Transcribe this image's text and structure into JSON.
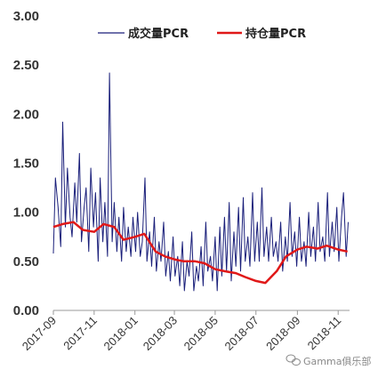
{
  "chart_data": {
    "type": "line",
    "ylim": [
      0,
      3
    ],
    "y_ticks": [
      "0.00",
      "0.50",
      "1.00",
      "1.50",
      "2.00",
      "2.50",
      "3.00"
    ],
    "x_range": [
      "2017-09-01",
      "2018-11-18"
    ],
    "x_ticks": [
      {
        "date": "2017-09-01",
        "label": "2017-09"
      },
      {
        "date": "2017-11-01",
        "label": "2017-11"
      },
      {
        "date": "2018-01-01",
        "label": "2018-01"
      },
      {
        "date": "2018-03-01",
        "label": "2018-03"
      },
      {
        "date": "2018-05-01",
        "label": "2018-05"
      },
      {
        "date": "2018-07-01",
        "label": "2018-07"
      },
      {
        "date": "2018-09-01",
        "label": "2018-09"
      },
      {
        "date": "2018-11-01",
        "label": "2018-11"
      }
    ],
    "legend_position": "top",
    "series": [
      {
        "name": "成交量PCR",
        "color": "#1a1f7a",
        "x": [
          "2017-09-01",
          "2017-09-04",
          "2017-09-08",
          "2017-09-12",
          "2017-09-15",
          "2017-09-19",
          "2017-09-22",
          "2017-09-26",
          "2017-09-29",
          "2017-10-03",
          "2017-10-06",
          "2017-10-10",
          "2017-10-13",
          "2017-10-17",
          "2017-10-20",
          "2017-10-24",
          "2017-10-27",
          "2017-10-31",
          "2017-11-03",
          "2017-11-07",
          "2017-11-10",
          "2017-11-14",
          "2017-11-17",
          "2017-11-21",
          "2017-11-24",
          "2017-11-28",
          "2017-12-01",
          "2017-12-05",
          "2017-12-08",
          "2017-12-12",
          "2017-12-15",
          "2017-12-19",
          "2017-12-22",
          "2017-12-26",
          "2017-12-29",
          "2018-01-02",
          "2018-01-05",
          "2018-01-09",
          "2018-01-12",
          "2018-01-16",
          "2018-01-19",
          "2018-01-23",
          "2018-01-26",
          "2018-01-30",
          "2018-02-02",
          "2018-02-06",
          "2018-02-09",
          "2018-02-13",
          "2018-02-16",
          "2018-02-20",
          "2018-02-23",
          "2018-02-27",
          "2018-03-02",
          "2018-03-06",
          "2018-03-09",
          "2018-03-13",
          "2018-03-16",
          "2018-03-20",
          "2018-03-23",
          "2018-03-27",
          "2018-03-30",
          "2018-04-03",
          "2018-04-06",
          "2018-04-10",
          "2018-04-13",
          "2018-04-17",
          "2018-04-20",
          "2018-04-24",
          "2018-04-27",
          "2018-05-01",
          "2018-05-04",
          "2018-05-08",
          "2018-05-11",
          "2018-05-15",
          "2018-05-18",
          "2018-05-22",
          "2018-05-25",
          "2018-05-29",
          "2018-06-01",
          "2018-06-05",
          "2018-06-08",
          "2018-06-12",
          "2018-06-15",
          "2018-06-19",
          "2018-06-22",
          "2018-06-26",
          "2018-06-29",
          "2018-07-03",
          "2018-07-06",
          "2018-07-10",
          "2018-07-13",
          "2018-07-17",
          "2018-07-20",
          "2018-07-24",
          "2018-07-27",
          "2018-07-31",
          "2018-08-03",
          "2018-08-07",
          "2018-08-10",
          "2018-08-14",
          "2018-08-17",
          "2018-08-21",
          "2018-08-24",
          "2018-08-28",
          "2018-08-31",
          "2018-09-04",
          "2018-09-07",
          "2018-09-11",
          "2018-09-14",
          "2018-09-18",
          "2018-09-21",
          "2018-09-25",
          "2018-09-28",
          "2018-10-02",
          "2018-10-05",
          "2018-10-09",
          "2018-10-12",
          "2018-10-16",
          "2018-10-19",
          "2018-10-23",
          "2018-10-26",
          "2018-10-30",
          "2018-11-02",
          "2018-11-06",
          "2018-11-09",
          "2018-11-13",
          "2018-11-16"
        ],
        "y": [
          0.58,
          1.35,
          1.05,
          0.65,
          1.92,
          0.85,
          1.45,
          0.95,
          0.75,
          1.3,
          0.9,
          1.6,
          0.7,
          1.05,
          1.25,
          0.6,
          1.45,
          0.85,
          1.2,
          0.5,
          1.35,
          0.7,
          1.1,
          0.55,
          2.42,
          0.7,
          1.1,
          0.6,
          0.95,
          0.5,
          1.05,
          0.6,
          0.85,
          0.55,
          0.95,
          0.6,
          1.0,
          0.55,
          0.7,
          1.35,
          0.5,
          0.8,
          0.45,
          0.95,
          0.4,
          0.7,
          0.5,
          0.9,
          0.35,
          0.6,
          0.3,
          0.75,
          0.35,
          0.55,
          0.25,
          0.7,
          0.2,
          0.5,
          0.35,
          0.8,
          0.2,
          0.45,
          0.3,
          0.65,
          0.25,
          0.9,
          0.4,
          0.55,
          0.3,
          0.75,
          0.2,
          0.85,
          0.35,
          0.95,
          0.4,
          1.1,
          0.3,
          0.8,
          0.45,
          1.05,
          0.4,
          1.15,
          0.5,
          0.75,
          0.45,
          1.2,
          0.5,
          0.9,
          0.5,
          1.25,
          0.55,
          0.85,
          0.5,
          0.95,
          0.55,
          0.7,
          0.5,
          0.9,
          0.4,
          0.75,
          0.5,
          1.1,
          0.55,
          0.8,
          0.45,
          0.95,
          0.5,
          0.7,
          0.45,
          1.0,
          0.55,
          0.85,
          0.5,
          1.1,
          0.6,
          0.75,
          0.5,
          1.2,
          0.55,
          0.9,
          0.6,
          1.05,
          0.5,
          0.95,
          1.2,
          0.55,
          0.9
        ]
      },
      {
        "name": "持仓量PCR",
        "color": "#e01818",
        "x": [
          "2017-09-01",
          "2017-09-15",
          "2017-10-01",
          "2017-10-15",
          "2017-11-01",
          "2017-11-15",
          "2017-12-01",
          "2017-12-15",
          "2018-01-01",
          "2018-01-15",
          "2018-02-01",
          "2018-02-15",
          "2018-03-01",
          "2018-03-15",
          "2018-04-01",
          "2018-04-15",
          "2018-05-01",
          "2018-05-15",
          "2018-06-01",
          "2018-06-15",
          "2018-07-01",
          "2018-07-15",
          "2018-08-01",
          "2018-08-15",
          "2018-09-01",
          "2018-09-15",
          "2018-10-01",
          "2018-10-15",
          "2018-11-01",
          "2018-11-15"
        ],
        "y": [
          0.85,
          0.88,
          0.9,
          0.82,
          0.8,
          0.88,
          0.85,
          0.72,
          0.75,
          0.78,
          0.6,
          0.55,
          0.52,
          0.5,
          0.5,
          0.48,
          0.42,
          0.4,
          0.38,
          0.34,
          0.3,
          0.28,
          0.4,
          0.55,
          0.62,
          0.65,
          0.63,
          0.66,
          0.62,
          0.6
        ]
      }
    ]
  },
  "legend": [
    {
      "label": "成交量PCR",
      "color": "#1a1f7a"
    },
    {
      "label": "持仓量PCR",
      "color": "#e01818"
    }
  ],
  "watermark": {
    "text": "Gamma俱乐部",
    "icon": "wechat-icon"
  }
}
